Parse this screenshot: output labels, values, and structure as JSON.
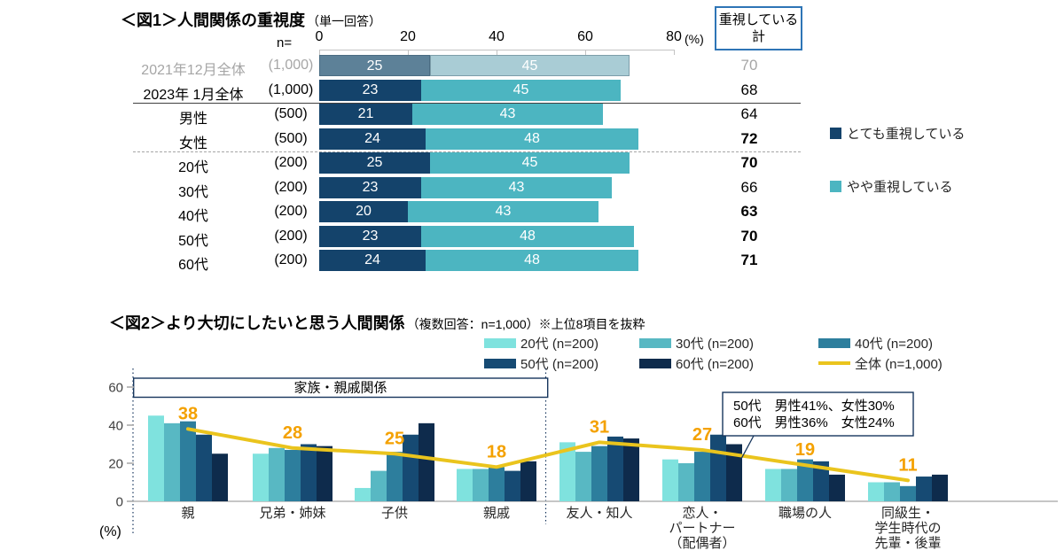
{
  "chart_data": [
    {
      "type": "bar",
      "orientation": "horizontal",
      "stacked": true,
      "title": "＜図1＞人間関係の重視度",
      "subtitle": "（単一回答）",
      "n_header": "n=",
      "xlim": [
        0,
        80
      ],
      "xticks": [
        0,
        20,
        40,
        60,
        80
      ],
      "x_unit": "(%)",
      "total_column_header": "重視している計",
      "total_column_header_lines": [
        "重視している",
        "計"
      ],
      "legend": [
        {
          "label": "とても重視している",
          "color": "#14436b"
        },
        {
          "label": "やや重視している",
          "color": "#4cb5c1"
        }
      ],
      "colors": [
        "#14436b",
        "#4cb5c1"
      ],
      "colors_muted": [
        "#5d8198",
        "#a9ccd5"
      ],
      "rows": [
        {
          "label": "2021年12月全体",
          "n": "(1,000)",
          "values": [
            25,
            45
          ],
          "total": 70,
          "muted": true,
          "total_bold": false,
          "separator_after": null
        },
        {
          "label": "2023年 1月全体",
          "n": "(1,000)",
          "values": [
            23,
            45
          ],
          "total": 68,
          "muted": false,
          "total_bold": false,
          "separator_after": "solid"
        },
        {
          "label": "男性",
          "n": "(500)",
          "values": [
            21,
            43
          ],
          "total": 64,
          "muted": false,
          "total_bold": false,
          "separator_after": null
        },
        {
          "label": "女性",
          "n": "(500)",
          "values": [
            24,
            48
          ],
          "total": 72,
          "muted": false,
          "total_bold": true,
          "separator_after": "dashed"
        },
        {
          "label": "20代",
          "n": "(200)",
          "values": [
            25,
            45
          ],
          "total": 70,
          "muted": false,
          "total_bold": true,
          "separator_after": null
        },
        {
          "label": "30代",
          "n": "(200)",
          "values": [
            23,
            43
          ],
          "total": 66,
          "muted": false,
          "total_bold": false,
          "separator_after": null
        },
        {
          "label": "40代",
          "n": "(200)",
          "values": [
            20,
            43
          ],
          "total": 63,
          "muted": false,
          "total_bold": true,
          "separator_after": null
        },
        {
          "label": "50代",
          "n": "(200)",
          "values": [
            23,
            48
          ],
          "total": 70,
          "muted": false,
          "total_bold": true,
          "separator_after": null
        },
        {
          "label": "60代",
          "n": "(200)",
          "values": [
            24,
            48
          ],
          "total": 71,
          "muted": false,
          "total_bold": true,
          "separator_after": null
        }
      ]
    },
    {
      "type": "bar+line",
      "title": "＜図2＞より大切にしたいと思う人間関係",
      "subtitle": "（複数回答：n=1,000）※上位8項目を抜粋",
      "ylim": [
        0,
        60
      ],
      "yticks": [
        0,
        20,
        40,
        60
      ],
      "y_unit": "(%)",
      "categories": [
        "親",
        "兄弟・姉妹",
        "子供",
        "親戚",
        "友人・知人",
        "恋人・パートナー（配偶者）",
        "職場の人",
        "同級生・学生時代の先輩・後輩"
      ],
      "category_lines": [
        [
          "親"
        ],
        [
          "兄弟・姉妹"
        ],
        [
          "子供"
        ],
        [
          "親戚"
        ],
        [
          "友人・知人"
        ],
        [
          "恋人・",
          "パートナー",
          "（配偶者）"
        ],
        [
          "職場の人"
        ],
        [
          "同級生・",
          "学生時代の",
          "先輩・後輩"
        ]
      ],
      "series": [
        {
          "name": "20代 (n=200)",
          "color": "#7fe2de",
          "values": [
            45,
            25,
            7,
            17,
            31,
            22,
            17,
            10
          ]
        },
        {
          "name": "30代 (n=200)",
          "color": "#58b8c3",
          "values": [
            41,
            28,
            16,
            17,
            26,
            20,
            17,
            10
          ]
        },
        {
          "name": "40代 (n=200)",
          "color": "#2d7e9d",
          "values": [
            42,
            27,
            26,
            18,
            29,
            26,
            22,
            8
          ]
        },
        {
          "name": "50代 (n=200)",
          "color": "#164a73",
          "values": [
            35,
            30,
            35,
            16,
            34,
            35,
            21,
            13
          ]
        },
        {
          "name": "60代 (n=200)",
          "color": "#0e2b4c",
          "values": [
            25,
            29,
            41,
            21,
            33,
            30,
            14,
            14
          ]
        }
      ],
      "line_series": {
        "name": "全体 (n=1,000)",
        "color": "#eac41d",
        "values": [
          38,
          28,
          25,
          18,
          31,
          27,
          19,
          11
        ]
      },
      "value_labels": [
        38,
        28,
        25,
        18,
        31,
        27,
        19,
        11
      ],
      "value_label_color": "#f4a100",
      "group_box": {
        "label": "家族・親戚関係",
        "span": [
          0,
          3
        ]
      },
      "annotation": {
        "lines": [
          "50代　男性41%、女性30%",
          "60代　男性36%　女性24%"
        ],
        "target_category": "恋人・パートナー（配偶者）"
      }
    }
  ]
}
